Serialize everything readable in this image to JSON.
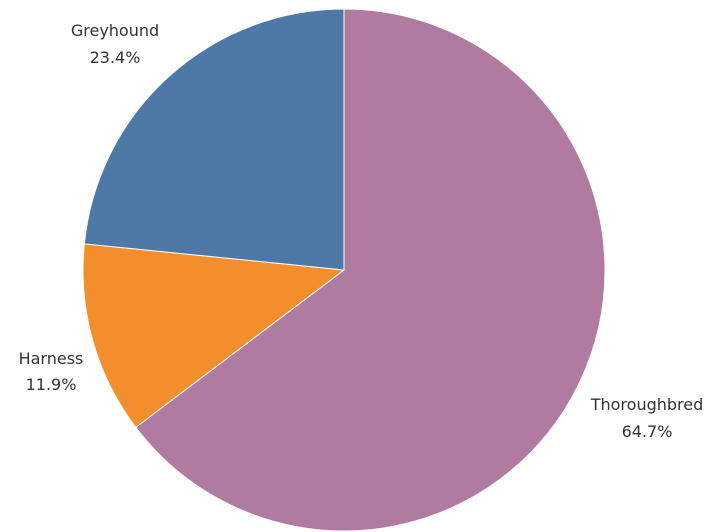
{
  "chart_data": {
    "type": "pie",
    "slices": [
      {
        "label": "Thoroughbred",
        "value": 64.7,
        "value_label": "64.7%",
        "color": "#B07AA1"
      },
      {
        "label": "Harness",
        "value": 11.9,
        "value_label": "11.9%",
        "color": "#F28E2B"
      },
      {
        "label": "Greyhound",
        "value": 23.4,
        "value_label": "23.4%",
        "color": "#4E79A7"
      }
    ],
    "start_angle_deg": 0,
    "direction": "clockwise",
    "legend": "none"
  }
}
